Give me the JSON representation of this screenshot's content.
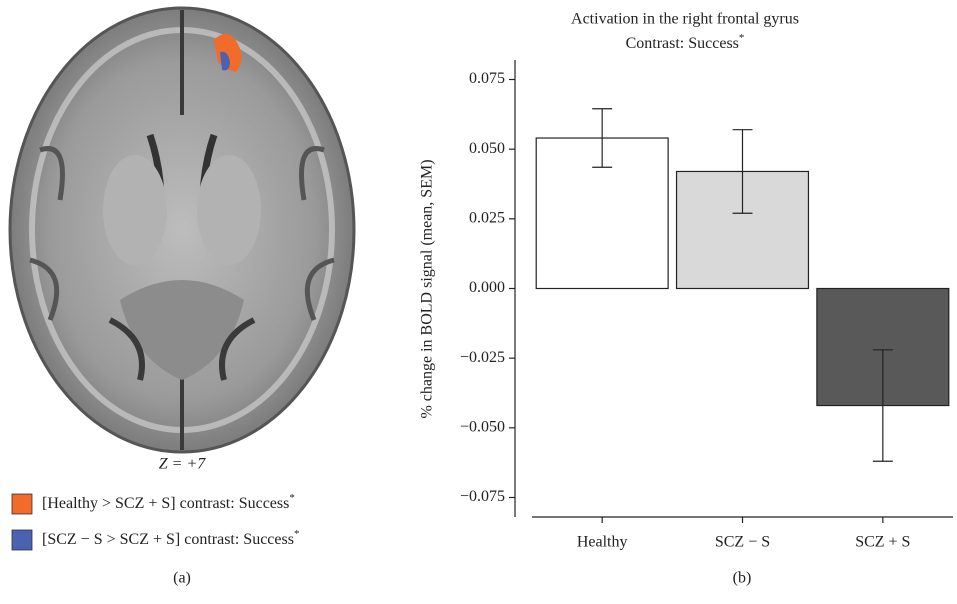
{
  "panel_a": {
    "slice_label": "Z = +7",
    "legend": [
      {
        "color": "#f26b2b",
        "label": "[Healthy > SCZ + S] contrast: Success",
        "superscript": "*"
      },
      {
        "color": "#4a62b0",
        "label": "[SCZ − S > SCZ + S] contrast: Success",
        "superscript": "*"
      }
    ],
    "panel_label": "(a)"
  },
  "chart_data": {
    "type": "bar",
    "title": "Activation in the right frontal gyrus",
    "subtitle": {
      "text": "Contrast: Success",
      "superscript": "*"
    },
    "y_label": "% change in BOLD signal (mean, SEM)",
    "categories": [
      "Healthy",
      "SCZ − S",
      "SCZ + S"
    ],
    "values": [
      0.054,
      0.042,
      -0.042
    ],
    "errors": [
      0.0105,
      0.015,
      0.02
    ],
    "colors": [
      "#ffffff",
      "#d9d9d9",
      "#595959"
    ],
    "ylim": [
      -0.082,
      0.082
    ],
    "yticks": [
      {
        "value": -0.075,
        "label": "−0.075"
      },
      {
        "value": -0.05,
        "label": "−0.050"
      },
      {
        "value": -0.025,
        "label": "−0.025"
      },
      {
        "value": 0,
        "label": "0.000"
      },
      0.025,
      {
        "value": 0.05,
        "label": "0.050"
      },
      0.075
    ],
    "panel_label": "(b)"
  }
}
